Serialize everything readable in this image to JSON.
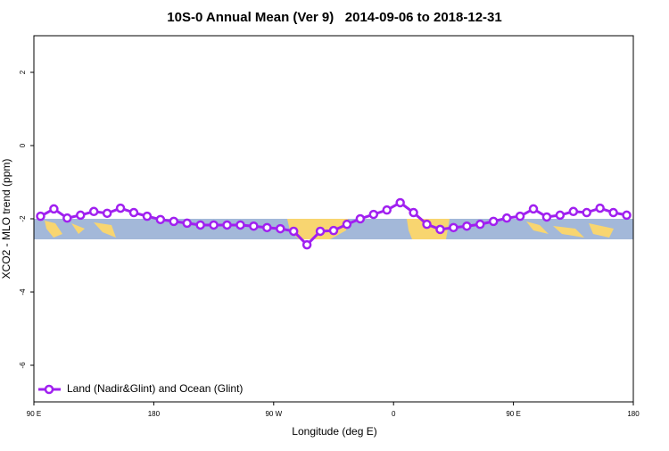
{
  "chart_data": {
    "type": "line",
    "title": "10S-0 Annual Mean (Ver 9)   2014-09-06 to 2018-12-31",
    "xlabel": "Longitude (deg E)",
    "ylabel": "XCO2 - MLO trend (ppm)",
    "x": [
      95,
      105,
      115,
      125,
      135,
      145,
      155,
      165,
      175,
      185,
      195,
      205,
      215,
      225,
      235,
      245,
      255,
      265,
      275,
      285,
      295,
      305,
      315,
      325,
      335,
      345,
      355,
      365,
      375,
      385,
      395,
      405,
      415,
      425,
      435,
      445,
      455,
      465,
      475,
      485,
      495,
      505,
      515,
      525,
      535
    ],
    "series": [
      {
        "name": "Land (Nadir&Glint) and Ocean (Glint)",
        "color": "#a020f0",
        "values": [
          -1.93,
          -1.73,
          -1.98,
          -1.9,
          -1.8,
          -1.85,
          -1.71,
          -1.83,
          -1.93,
          -2.02,
          -2.07,
          -2.12,
          -2.17,
          -2.17,
          -2.17,
          -2.17,
          -2.2,
          -2.24,
          -2.27,
          -2.34,
          -2.71,
          -2.34,
          -2.32,
          -2.15,
          -2.0,
          -1.88,
          -1.76,
          -1.56,
          -1.83,
          -2.15,
          -2.29,
          -2.24,
          -2.2,
          -2.15,
          -2.07,
          -1.98,
          -1.93,
          -1.73,
          -1.95,
          -1.9,
          -1.8,
          -1.83,
          -1.71,
          -1.83,
          -1.9
        ]
      }
    ],
    "xlim": [
      90,
      540
    ],
    "xticks": [
      {
        "value": 90,
        "label": "90 E"
      },
      180,
      {
        "value": 270,
        "label": "90 W"
      },
      {
        "value": 360,
        "label": "0"
      },
      {
        "value": 450,
        "label": "90 E"
      },
      {
        "value": 540,
        "label": "180"
      }
    ],
    "ylim": [
      -7,
      3
    ],
    "yticks": [
      2,
      0,
      -2,
      -4,
      -6
    ],
    "legend": "bottom-left"
  }
}
